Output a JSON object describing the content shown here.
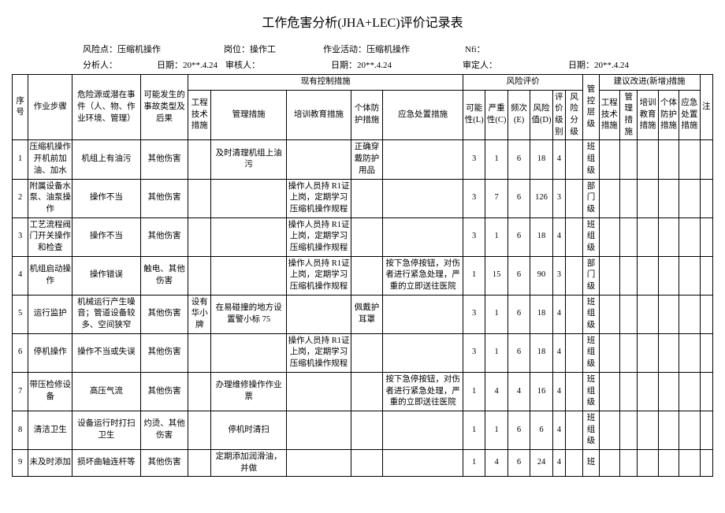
{
  "title": "工作危害分析(JHA+LEC)评价记录表",
  "meta": {
    "risk_point_label": "风险点：",
    "risk_point": "压缩机操作",
    "position_label": "岗位：",
    "position": "操作工",
    "activity_label": "作业活动：",
    "activity": "压缩机操作",
    "nfi_label": "Nfi：",
    "nfi": "",
    "analyst_label": "分析人：",
    "analyst": "",
    "date1_label": "日期：",
    "date1": "20**.4.24",
    "reviewer_label": "审核人：",
    "reviewer": "",
    "date2_label": "日期：",
    "date2": "20**.4.24",
    "approver_label": "审定人：",
    "approver": "",
    "date3_label": "日期：",
    "date3": "20**.4.24"
  },
  "headers": {
    "seq": "序号",
    "step": "作业步骤",
    "hazard": "危险源或潜在事件（人、物、作业环境、管理）",
    "consequence": "可能发生的事故类型及后果",
    "existing": "现有控制措施",
    "eng": "工程技术措施",
    "mgmt": "管理措施",
    "train": "培训教育措施",
    "ppe": "个体防护措施",
    "emerg": "应急处置措施",
    "risk_eval": "风险评价",
    "L": "可能性(L)",
    "C": "严重性(C)",
    "E": "频次(E)",
    "D": "风险值(D)",
    "lvl": "评价级别",
    "risk_lvl": "风险分级",
    "ctrl_lvl": "管控层级",
    "suggest": "建议改进(新增)措施",
    "s_eng": "工程技术措施",
    "s_mgmt": "管理措施",
    "s_train": "培训教育措施",
    "s_ppe": "个体防护措施",
    "s_emerg": "应急处置措施",
    "note": "注"
  },
  "rows": [
    {
      "seq": "1",
      "step": "压缩机操作开机前加油、加水",
      "hazard": "机组上有油污",
      "cons": "其他伤害",
      "eng": "",
      "mgmt": "及时清理机组上油污",
      "train": "",
      "ppe": "正确穿戴防护用品",
      "emerg": "",
      "L": "3",
      "C": "1",
      "E": "6",
      "D": "18",
      "lvl": "4",
      "risk": "",
      "ctrl": "4",
      "cl": "班组级"
    },
    {
      "seq": "2",
      "step": "附属设备水泵、油泵操作",
      "hazard": "操作不当",
      "cons": "其他伤害",
      "eng": "",
      "mgmt": "",
      "train": "操作人员持 R1证上岗，定期学习压缩机操作规程",
      "ppe": "",
      "emerg": "",
      "L": "3",
      "C": "7",
      "E": "6",
      "D": "126",
      "lvl": "3",
      "risk": "",
      "ctrl": "3",
      "cl": "部门级"
    },
    {
      "seq": "3",
      "step": "工艺流程阀门开关操作和检查",
      "hazard": "操作不当",
      "cons": "其他伤害",
      "eng": "",
      "mgmt": "",
      "train": "操作人员持 R1证上岗，定期学习压缩机操作规程",
      "ppe": "",
      "emerg": "",
      "L": "3",
      "C": "1",
      "E": "6",
      "D": "18",
      "lvl": "4",
      "risk": "",
      "ctrl": "",
      "cl": "班组级"
    },
    {
      "seq": "4",
      "step": "机组启动操作",
      "hazard": "操作错误",
      "cons": "触电、其他伤害",
      "eng": "",
      "mgmt": "",
      "train": "操作人员持 R1证上岗，定期学习压缩机操作规程",
      "ppe": "",
      "emerg": "按下急停按钮，对伤者进行紧急处理，严重的立即送往医院",
      "L": "1",
      "C": "15",
      "E": "6",
      "D": "90",
      "lvl": "3",
      "risk": "",
      "ctrl": "3",
      "cl": "部门级"
    },
    {
      "seq": "5",
      "step": "运行监护",
      "hazard": "机械运行产生噪音；管道设备较多、空间狭窄",
      "cons": "其他伤害",
      "eng": "设有华小牌",
      "mgmt": "在易碰撞的地方设置警小标 75",
      "train": "",
      "ppe": "佩戴护耳罩",
      "emerg": "",
      "L": "3",
      "C": "1",
      "E": "6",
      "D": "18",
      "lvl": "4",
      "risk": "",
      "ctrl": "4",
      "cl": "班组级"
    },
    {
      "seq": "6",
      "step": "停机操作",
      "hazard": "操作不当或失误",
      "cons": "其他伤害",
      "eng": "",
      "mgmt": "",
      "train": "操作人员持 R1证上岗，定期学习压缩机操作规程",
      "ppe": "",
      "emerg": "",
      "L": "3",
      "C": "1",
      "E": "6",
      "D": "18",
      "lvl": "4",
      "risk": "",
      "ctrl": "4",
      "cl": "班组级"
    },
    {
      "seq": "7",
      "step": "带压检修设备",
      "hazard": "高压气流",
      "cons": "其他伤害",
      "eng": "",
      "mgmt": "办理维修操作作业票",
      "train": "",
      "ppe": "",
      "emerg": "按下急停按钮，对伤者进行紧急处理，严重的立即送往医院",
      "L": "1",
      "C": "4",
      "E": "4",
      "D": "16",
      "lvl": "4",
      "risk": "",
      "ctrl": "4",
      "cl": "班组级"
    },
    {
      "seq": "8",
      "step": "清洁卫生",
      "hazard": "设备运行时打扫卫生",
      "cons": "灼烫、其他伤害",
      "eng": "",
      "mgmt": "停机时清扫",
      "train": "",
      "ppe": "",
      "emerg": "",
      "L": "1",
      "C": "1",
      "E": "6",
      "D": "6",
      "lvl": "4",
      "risk": "",
      "ctrl": "4",
      "cl": "班组级"
    },
    {
      "seq": "9",
      "step": "未及时添加",
      "hazard": "损坏曲轴连杆等",
      "cons": "其他伤害",
      "eng": "",
      "mgmt": "定期添加润滑油，并做",
      "train": "",
      "ppe": "",
      "emerg": "",
      "L": "1",
      "C": "4",
      "E": "6",
      "D": "24",
      "lvl": "4",
      "risk": "",
      "ctrl": "4",
      "cl": "班"
    }
  ]
}
